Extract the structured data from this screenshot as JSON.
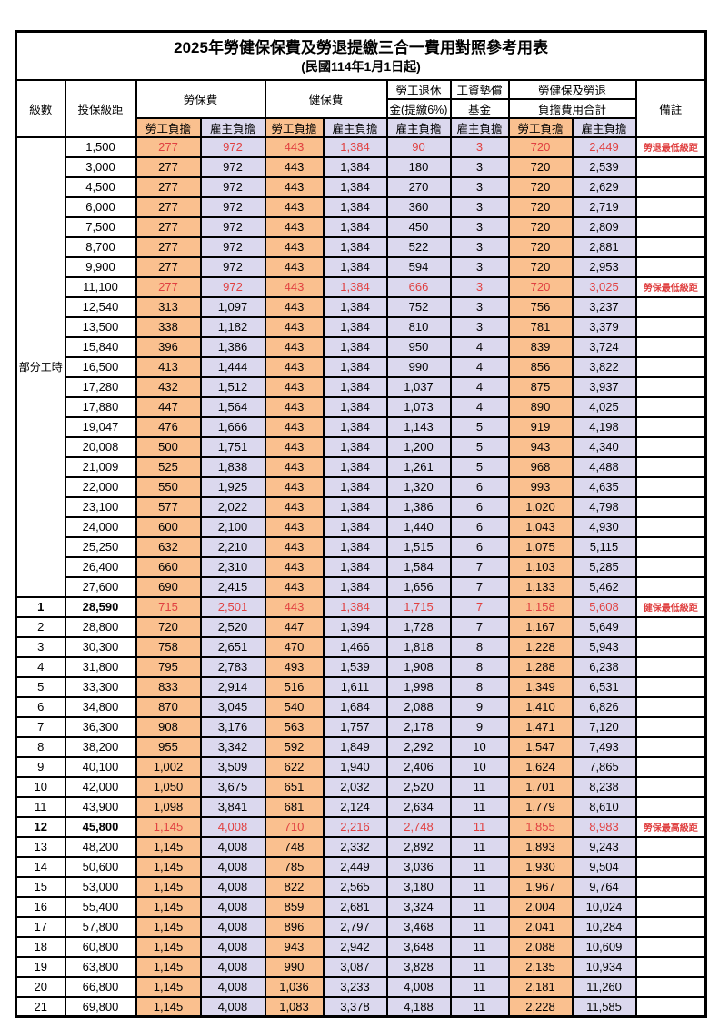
{
  "page": {
    "title": "2025年勞健保保費及勞退提繳三合一費用對照參考用表",
    "subtitle": "(民國114年1月1日起)"
  },
  "colors": {
    "employee_bg": "#FAC08F",
    "employer_bg": "#DBD8EE",
    "highlight_red": "#E04040"
  },
  "header": {
    "level": "級數",
    "bracket": "投保級距",
    "labor_fee": "勞保費",
    "health_fee": "健保費",
    "pension_l1": "勞工退休",
    "pension_l2": "金(提繳6%)",
    "fund_l1": "工資墊償",
    "fund_l2": "基金",
    "total_l1": "勞健保及勞退",
    "total_l2": "負擔費用合計",
    "remark": "備註",
    "employee": "勞工負擔",
    "employer": "雇主負擔"
  },
  "part_time_label": "部分工時",
  "part_time_span": 23,
  "rows": [
    {
      "level": "",
      "bracket": "1,500",
      "li_e": "277",
      "li_r": "972",
      "hi_e": "443",
      "hi_r": "1,384",
      "pension": "90",
      "fund": "3",
      "tot_e": "720",
      "tot_r": "2,449",
      "remark": "勞退最低級距",
      "red": true,
      "key": false
    },
    {
      "level": "",
      "bracket": "3,000",
      "li_e": "277",
      "li_r": "972",
      "hi_e": "443",
      "hi_r": "1,384",
      "pension": "180",
      "fund": "3",
      "tot_e": "720",
      "tot_r": "2,539",
      "remark": "",
      "red": false,
      "key": false
    },
    {
      "level": "",
      "bracket": "4,500",
      "li_e": "277",
      "li_r": "972",
      "hi_e": "443",
      "hi_r": "1,384",
      "pension": "270",
      "fund": "3",
      "tot_e": "720",
      "tot_r": "2,629",
      "remark": "",
      "red": false,
      "key": false
    },
    {
      "level": "",
      "bracket": "6,000",
      "li_e": "277",
      "li_r": "972",
      "hi_e": "443",
      "hi_r": "1,384",
      "pension": "360",
      "fund": "3",
      "tot_e": "720",
      "tot_r": "2,719",
      "remark": "",
      "red": false,
      "key": false
    },
    {
      "level": "",
      "bracket": "7,500",
      "li_e": "277",
      "li_r": "972",
      "hi_e": "443",
      "hi_r": "1,384",
      "pension": "450",
      "fund": "3",
      "tot_e": "720",
      "tot_r": "2,809",
      "remark": "",
      "red": false,
      "key": false
    },
    {
      "level": "",
      "bracket": "8,700",
      "li_e": "277",
      "li_r": "972",
      "hi_e": "443",
      "hi_r": "1,384",
      "pension": "522",
      "fund": "3",
      "tot_e": "720",
      "tot_r": "2,881",
      "remark": "",
      "red": false,
      "key": false
    },
    {
      "level": "",
      "bracket": "9,900",
      "li_e": "277",
      "li_r": "972",
      "hi_e": "443",
      "hi_r": "1,384",
      "pension": "594",
      "fund": "3",
      "tot_e": "720",
      "tot_r": "2,953",
      "remark": "",
      "red": false,
      "key": false
    },
    {
      "level": "",
      "bracket": "11,100",
      "li_e": "277",
      "li_r": "972",
      "hi_e": "443",
      "hi_r": "1,384",
      "pension": "666",
      "fund": "3",
      "tot_e": "720",
      "tot_r": "3,025",
      "remark": "勞保最低級距",
      "red": true,
      "key": false
    },
    {
      "level": "",
      "bracket": "12,540",
      "li_e": "313",
      "li_r": "1,097",
      "hi_e": "443",
      "hi_r": "1,384",
      "pension": "752",
      "fund": "3",
      "tot_e": "756",
      "tot_r": "3,237",
      "remark": "",
      "red": false,
      "key": false
    },
    {
      "level": "",
      "bracket": "13,500",
      "li_e": "338",
      "li_r": "1,182",
      "hi_e": "443",
      "hi_r": "1,384",
      "pension": "810",
      "fund": "3",
      "tot_e": "781",
      "tot_r": "3,379",
      "remark": "",
      "red": false,
      "key": false
    },
    {
      "level": "",
      "bracket": "15,840",
      "li_e": "396",
      "li_r": "1,386",
      "hi_e": "443",
      "hi_r": "1,384",
      "pension": "950",
      "fund": "4",
      "tot_e": "839",
      "tot_r": "3,724",
      "remark": "",
      "red": false,
      "key": false
    },
    {
      "level": "",
      "bracket": "16,500",
      "li_e": "413",
      "li_r": "1,444",
      "hi_e": "443",
      "hi_r": "1,384",
      "pension": "990",
      "fund": "4",
      "tot_e": "856",
      "tot_r": "3,822",
      "remark": "",
      "red": false,
      "key": false
    },
    {
      "level": "",
      "bracket": "17,280",
      "li_e": "432",
      "li_r": "1,512",
      "hi_e": "443",
      "hi_r": "1,384",
      "pension": "1,037",
      "fund": "4",
      "tot_e": "875",
      "tot_r": "3,937",
      "remark": "",
      "red": false,
      "key": false
    },
    {
      "level": "",
      "bracket": "17,880",
      "li_e": "447",
      "li_r": "1,564",
      "hi_e": "443",
      "hi_r": "1,384",
      "pension": "1,073",
      "fund": "4",
      "tot_e": "890",
      "tot_r": "4,025",
      "remark": "",
      "red": false,
      "key": false
    },
    {
      "level": "",
      "bracket": "19,047",
      "li_e": "476",
      "li_r": "1,666",
      "hi_e": "443",
      "hi_r": "1,384",
      "pension": "1,143",
      "fund": "5",
      "tot_e": "919",
      "tot_r": "4,198",
      "remark": "",
      "red": false,
      "key": false
    },
    {
      "level": "",
      "bracket": "20,008",
      "li_e": "500",
      "li_r": "1,751",
      "hi_e": "443",
      "hi_r": "1,384",
      "pension": "1,200",
      "fund": "5",
      "tot_e": "943",
      "tot_r": "4,340",
      "remark": "",
      "red": false,
      "key": false
    },
    {
      "level": "",
      "bracket": "21,009",
      "li_e": "525",
      "li_r": "1,838",
      "hi_e": "443",
      "hi_r": "1,384",
      "pension": "1,261",
      "fund": "5",
      "tot_e": "968",
      "tot_r": "4,488",
      "remark": "",
      "red": false,
      "key": false
    },
    {
      "level": "",
      "bracket": "22,000",
      "li_e": "550",
      "li_r": "1,925",
      "hi_e": "443",
      "hi_r": "1,384",
      "pension": "1,320",
      "fund": "6",
      "tot_e": "993",
      "tot_r": "4,635",
      "remark": "",
      "red": false,
      "key": false
    },
    {
      "level": "",
      "bracket": "23,100",
      "li_e": "577",
      "li_r": "2,022",
      "hi_e": "443",
      "hi_r": "1,384",
      "pension": "1,386",
      "fund": "6",
      "tot_e": "1,020",
      "tot_r": "4,798",
      "remark": "",
      "red": false,
      "key": false
    },
    {
      "level": "",
      "bracket": "24,000",
      "li_e": "600",
      "li_r": "2,100",
      "hi_e": "443",
      "hi_r": "1,384",
      "pension": "1,440",
      "fund": "6",
      "tot_e": "1,043",
      "tot_r": "4,930",
      "remark": "",
      "red": false,
      "key": false
    },
    {
      "level": "",
      "bracket": "25,250",
      "li_e": "632",
      "li_r": "2,210",
      "hi_e": "443",
      "hi_r": "1,384",
      "pension": "1,515",
      "fund": "6",
      "tot_e": "1,075",
      "tot_r": "5,115",
      "remark": "",
      "red": false,
      "key": false
    },
    {
      "level": "",
      "bracket": "26,400",
      "li_e": "660",
      "li_r": "2,310",
      "hi_e": "443",
      "hi_r": "1,384",
      "pension": "1,584",
      "fund": "7",
      "tot_e": "1,103",
      "tot_r": "5,285",
      "remark": "",
      "red": false,
      "key": false
    },
    {
      "level": "",
      "bracket": "27,600",
      "li_e": "690",
      "li_r": "2,415",
      "hi_e": "443",
      "hi_r": "1,384",
      "pension": "1,656",
      "fund": "7",
      "tot_e": "1,133",
      "tot_r": "5,462",
      "remark": "",
      "red": false,
      "key": false
    },
    {
      "level": "1",
      "bracket": "28,590",
      "li_e": "715",
      "li_r": "2,501",
      "hi_e": "443",
      "hi_r": "1,384",
      "pension": "1,715",
      "fund": "7",
      "tot_e": "1,158",
      "tot_r": "5,608",
      "remark": "健保最低級距",
      "red": true,
      "key": true
    },
    {
      "level": "2",
      "bracket": "28,800",
      "li_e": "720",
      "li_r": "2,520",
      "hi_e": "447",
      "hi_r": "1,394",
      "pension": "1,728",
      "fund": "7",
      "tot_e": "1,167",
      "tot_r": "5,649",
      "remark": "",
      "red": false,
      "key": false
    },
    {
      "level": "3",
      "bracket": "30,300",
      "li_e": "758",
      "li_r": "2,651",
      "hi_e": "470",
      "hi_r": "1,466",
      "pension": "1,818",
      "fund": "8",
      "tot_e": "1,228",
      "tot_r": "5,943",
      "remark": "",
      "red": false,
      "key": false
    },
    {
      "level": "4",
      "bracket": "31,800",
      "li_e": "795",
      "li_r": "2,783",
      "hi_e": "493",
      "hi_r": "1,539",
      "pension": "1,908",
      "fund": "8",
      "tot_e": "1,288",
      "tot_r": "6,238",
      "remark": "",
      "red": false,
      "key": false
    },
    {
      "level": "5",
      "bracket": "33,300",
      "li_e": "833",
      "li_r": "2,914",
      "hi_e": "516",
      "hi_r": "1,611",
      "pension": "1,998",
      "fund": "8",
      "tot_e": "1,349",
      "tot_r": "6,531",
      "remark": "",
      "red": false,
      "key": false
    },
    {
      "level": "6",
      "bracket": "34,800",
      "li_e": "870",
      "li_r": "3,045",
      "hi_e": "540",
      "hi_r": "1,684",
      "pension": "2,088",
      "fund": "9",
      "tot_e": "1,410",
      "tot_r": "6,826",
      "remark": "",
      "red": false,
      "key": false
    },
    {
      "level": "7",
      "bracket": "36,300",
      "li_e": "908",
      "li_r": "3,176",
      "hi_e": "563",
      "hi_r": "1,757",
      "pension": "2,178",
      "fund": "9",
      "tot_e": "1,471",
      "tot_r": "7,120",
      "remark": "",
      "red": false,
      "key": false
    },
    {
      "level": "8",
      "bracket": "38,200",
      "li_e": "955",
      "li_r": "3,342",
      "hi_e": "592",
      "hi_r": "1,849",
      "pension": "2,292",
      "fund": "10",
      "tot_e": "1,547",
      "tot_r": "7,493",
      "remark": "",
      "red": false,
      "key": false
    },
    {
      "level": "9",
      "bracket": "40,100",
      "li_e": "1,002",
      "li_r": "3,509",
      "hi_e": "622",
      "hi_r": "1,940",
      "pension": "2,406",
      "fund": "10",
      "tot_e": "1,624",
      "tot_r": "7,865",
      "remark": "",
      "red": false,
      "key": false
    },
    {
      "level": "10",
      "bracket": "42,000",
      "li_e": "1,050",
      "li_r": "3,675",
      "hi_e": "651",
      "hi_r": "2,032",
      "pension": "2,520",
      "fund": "11",
      "tot_e": "1,701",
      "tot_r": "8,238",
      "remark": "",
      "red": false,
      "key": false
    },
    {
      "level": "11",
      "bracket": "43,900",
      "li_e": "1,098",
      "li_r": "3,841",
      "hi_e": "681",
      "hi_r": "2,124",
      "pension": "2,634",
      "fund": "11",
      "tot_e": "1,779",
      "tot_r": "8,610",
      "remark": "",
      "red": false,
      "key": false
    },
    {
      "level": "12",
      "bracket": "45,800",
      "li_e": "1,145",
      "li_r": "4,008",
      "hi_e": "710",
      "hi_r": "2,216",
      "pension": "2,748",
      "fund": "11",
      "tot_e": "1,855",
      "tot_r": "8,983",
      "remark": "勞保最高級距",
      "red": true,
      "key": true
    },
    {
      "level": "13",
      "bracket": "48,200",
      "li_e": "1,145",
      "li_r": "4,008",
      "hi_e": "748",
      "hi_r": "2,332",
      "pension": "2,892",
      "fund": "11",
      "tot_e": "1,893",
      "tot_r": "9,243",
      "remark": "",
      "red": false,
      "key": false
    },
    {
      "level": "14",
      "bracket": "50,600",
      "li_e": "1,145",
      "li_r": "4,008",
      "hi_e": "785",
      "hi_r": "2,449",
      "pension": "3,036",
      "fund": "11",
      "tot_e": "1,930",
      "tot_r": "9,504",
      "remark": "",
      "red": false,
      "key": false
    },
    {
      "level": "15",
      "bracket": "53,000",
      "li_e": "1,145",
      "li_r": "4,008",
      "hi_e": "822",
      "hi_r": "2,565",
      "pension": "3,180",
      "fund": "11",
      "tot_e": "1,967",
      "tot_r": "9,764",
      "remark": "",
      "red": false,
      "key": false
    },
    {
      "level": "16",
      "bracket": "55,400",
      "li_e": "1,145",
      "li_r": "4,008",
      "hi_e": "859",
      "hi_r": "2,681",
      "pension": "3,324",
      "fund": "11",
      "tot_e": "2,004",
      "tot_r": "10,024",
      "remark": "",
      "red": false,
      "key": false
    },
    {
      "level": "17",
      "bracket": "57,800",
      "li_e": "1,145",
      "li_r": "4,008",
      "hi_e": "896",
      "hi_r": "2,797",
      "pension": "3,468",
      "fund": "11",
      "tot_e": "2,041",
      "tot_r": "10,284",
      "remark": "",
      "red": false,
      "key": false
    },
    {
      "level": "18",
      "bracket": "60,800",
      "li_e": "1,145",
      "li_r": "4,008",
      "hi_e": "943",
      "hi_r": "2,942",
      "pension": "3,648",
      "fund": "11",
      "tot_e": "2,088",
      "tot_r": "10,609",
      "remark": "",
      "red": false,
      "key": false
    },
    {
      "level": "19",
      "bracket": "63,800",
      "li_e": "1,145",
      "li_r": "4,008",
      "hi_e": "990",
      "hi_r": "3,087",
      "pension": "3,828",
      "fund": "11",
      "tot_e": "2,135",
      "tot_r": "10,934",
      "remark": "",
      "red": false,
      "key": false
    },
    {
      "level": "20",
      "bracket": "66,800",
      "li_e": "1,145",
      "li_r": "4,008",
      "hi_e": "1,036",
      "hi_r": "3,233",
      "pension": "4,008",
      "fund": "11",
      "tot_e": "2,181",
      "tot_r": "11,260",
      "remark": "",
      "red": false,
      "key": false
    },
    {
      "level": "21",
      "bracket": "69,800",
      "li_e": "1,145",
      "li_r": "4,008",
      "hi_e": "1,083",
      "hi_r": "3,378",
      "pension": "4,188",
      "fund": "11",
      "tot_e": "2,228",
      "tot_r": "11,585",
      "remark": "",
      "red": false,
      "key": false
    }
  ]
}
